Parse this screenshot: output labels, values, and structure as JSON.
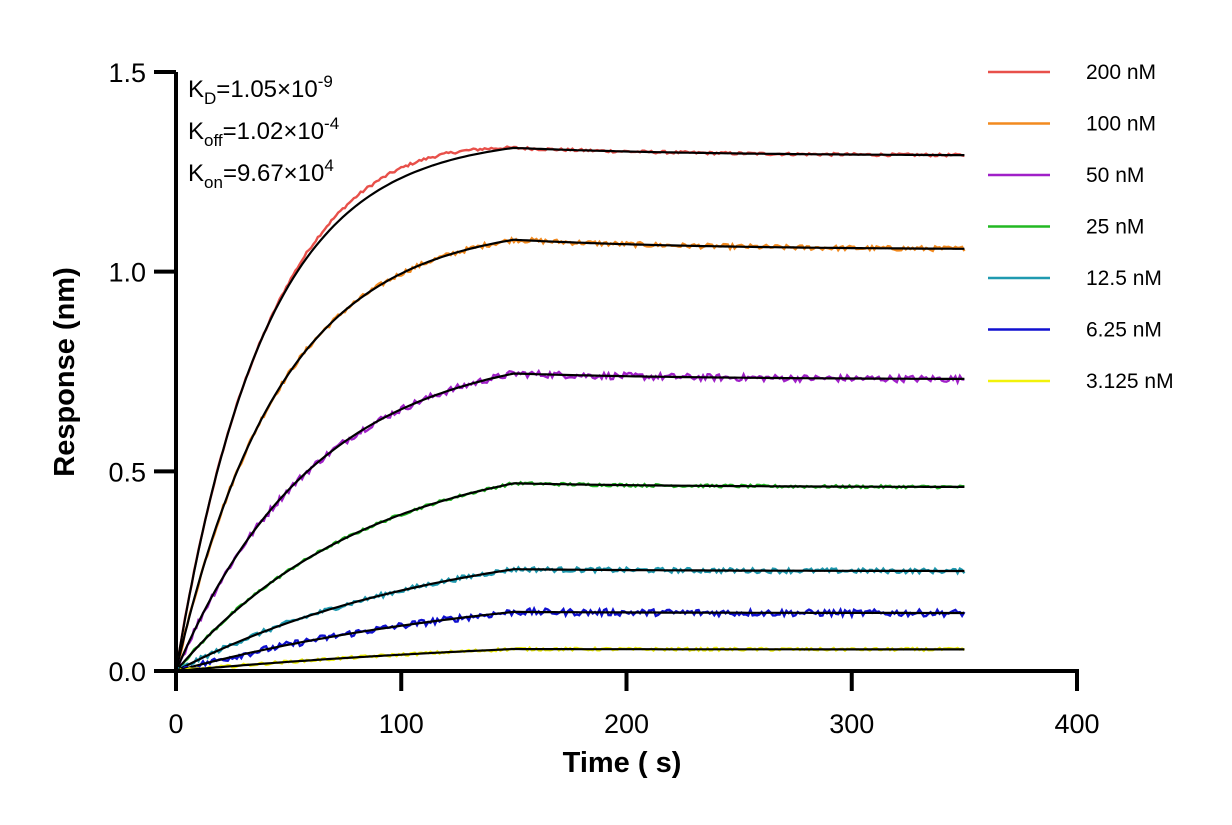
{
  "chart_data": {
    "type": "line",
    "title": "",
    "xlabel": "Time ( s)",
    "ylabel": "Response (nm)",
    "xlim": [
      0,
      400
    ],
    "ylim": [
      0,
      1.5
    ],
    "xticks": [
      "0",
      "100",
      "200",
      "300",
      "400"
    ],
    "yticks": [
      "0.0",
      "0.5",
      "1.0",
      "1.5"
    ],
    "grid": false,
    "legend_position": "right",
    "association_end_s": 150,
    "end_s": 350,
    "annotations": {
      "kd": {
        "sym": "K",
        "sub": "D",
        "val": "=1.05×10",
        "exp": "-9"
      },
      "koff": {
        "sym": "K",
        "sub": "off",
        "val": "=1.02×10",
        "exp": "-4"
      },
      "kon": {
        "sym": "K",
        "sub": "on",
        "val": "=9.67×10",
        "exp": "4"
      }
    },
    "series": [
      {
        "name": "200 nM",
        "color": "#e8504a",
        "peak": 1.31,
        "end": 1.29
      },
      {
        "name": "100 nM",
        "color": "#f28a1f",
        "peak": 1.08,
        "end": 1.055
      },
      {
        "name": "50 nM",
        "color": "#a020c8",
        "peak": 0.745,
        "end": 0.73
      },
      {
        "name": "25 nM",
        "color": "#22b822",
        "peak": 0.47,
        "end": 0.46
      },
      {
        "name": "12.5 nM",
        "color": "#1f9ab0",
        "peak": 0.255,
        "end": 0.25
      },
      {
        "name": "6.25 nM",
        "color": "#1010d0",
        "peak": 0.148,
        "end": 0.145
      },
      {
        "name": "3.125 nM",
        "color": "#f2f20a",
        "peak": 0.055,
        "end": 0.054
      }
    ],
    "fit_color": "#000000"
  }
}
